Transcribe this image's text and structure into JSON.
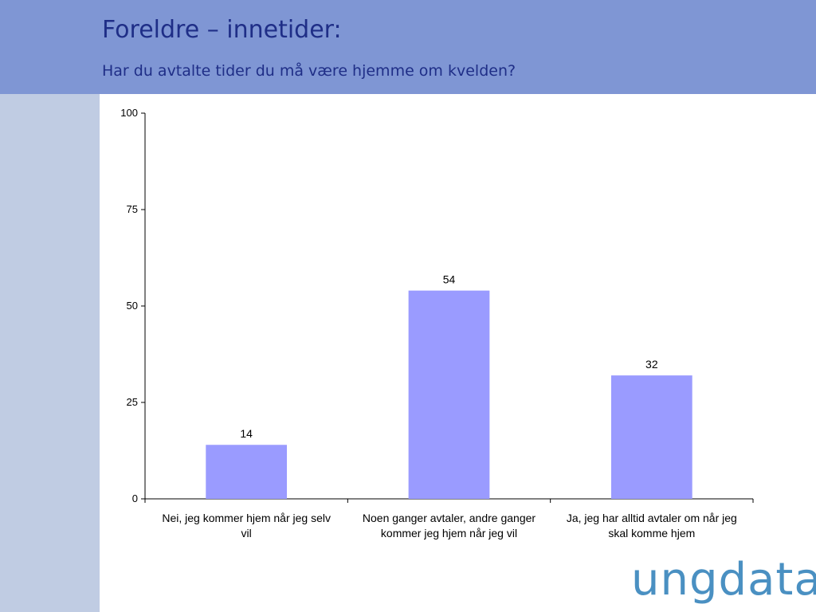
{
  "slide": {
    "title": "Foreldre – innetider:",
    "subtitle": "Har du avtalte tider du må være hjemme om kvelden?",
    "logo_text": "ungdata"
  },
  "colors": {
    "header": "#7f96d4",
    "sidebar": "#c0cce3",
    "bar": "#9a9bff",
    "title_text": "#1f2e87",
    "logo": "#4a90c2"
  },
  "chart_data": {
    "type": "bar",
    "categories": [
      [
        "Nei, jeg kommer hjem når jeg selv",
        "vil"
      ],
      [
        "Noen ganger avtaler, andre ganger",
        "kommer jeg hjem når jeg vil"
      ],
      [
        "Ja, jeg har alltid avtaler om når jeg",
        "skal komme hjem"
      ]
    ],
    "values": [
      14,
      54,
      32
    ],
    "data_labels": [
      "14",
      "54",
      "32"
    ],
    "ylim": [
      0,
      100
    ],
    "yticks": [
      0,
      25,
      50,
      75,
      100
    ],
    "grid": false,
    "legend": "none"
  }
}
